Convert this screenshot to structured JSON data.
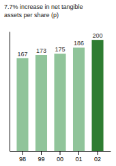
{
  "chart_data": {
    "type": "bar",
    "title": "7.7% increase in net tangible\nassets per share (p)",
    "categories": [
      "98",
      "99",
      "00",
      "01",
      "02"
    ],
    "values": [
      167,
      173,
      175,
      186,
      200
    ],
    "colors": [
      "#90c49a",
      "#90c49a",
      "#90c49a",
      "#90c49a",
      "#2e7d32"
    ],
    "ylim": [
      0,
      215
    ],
    "yticks": [],
    "data_labels": true,
    "tick_labels": "x"
  }
}
